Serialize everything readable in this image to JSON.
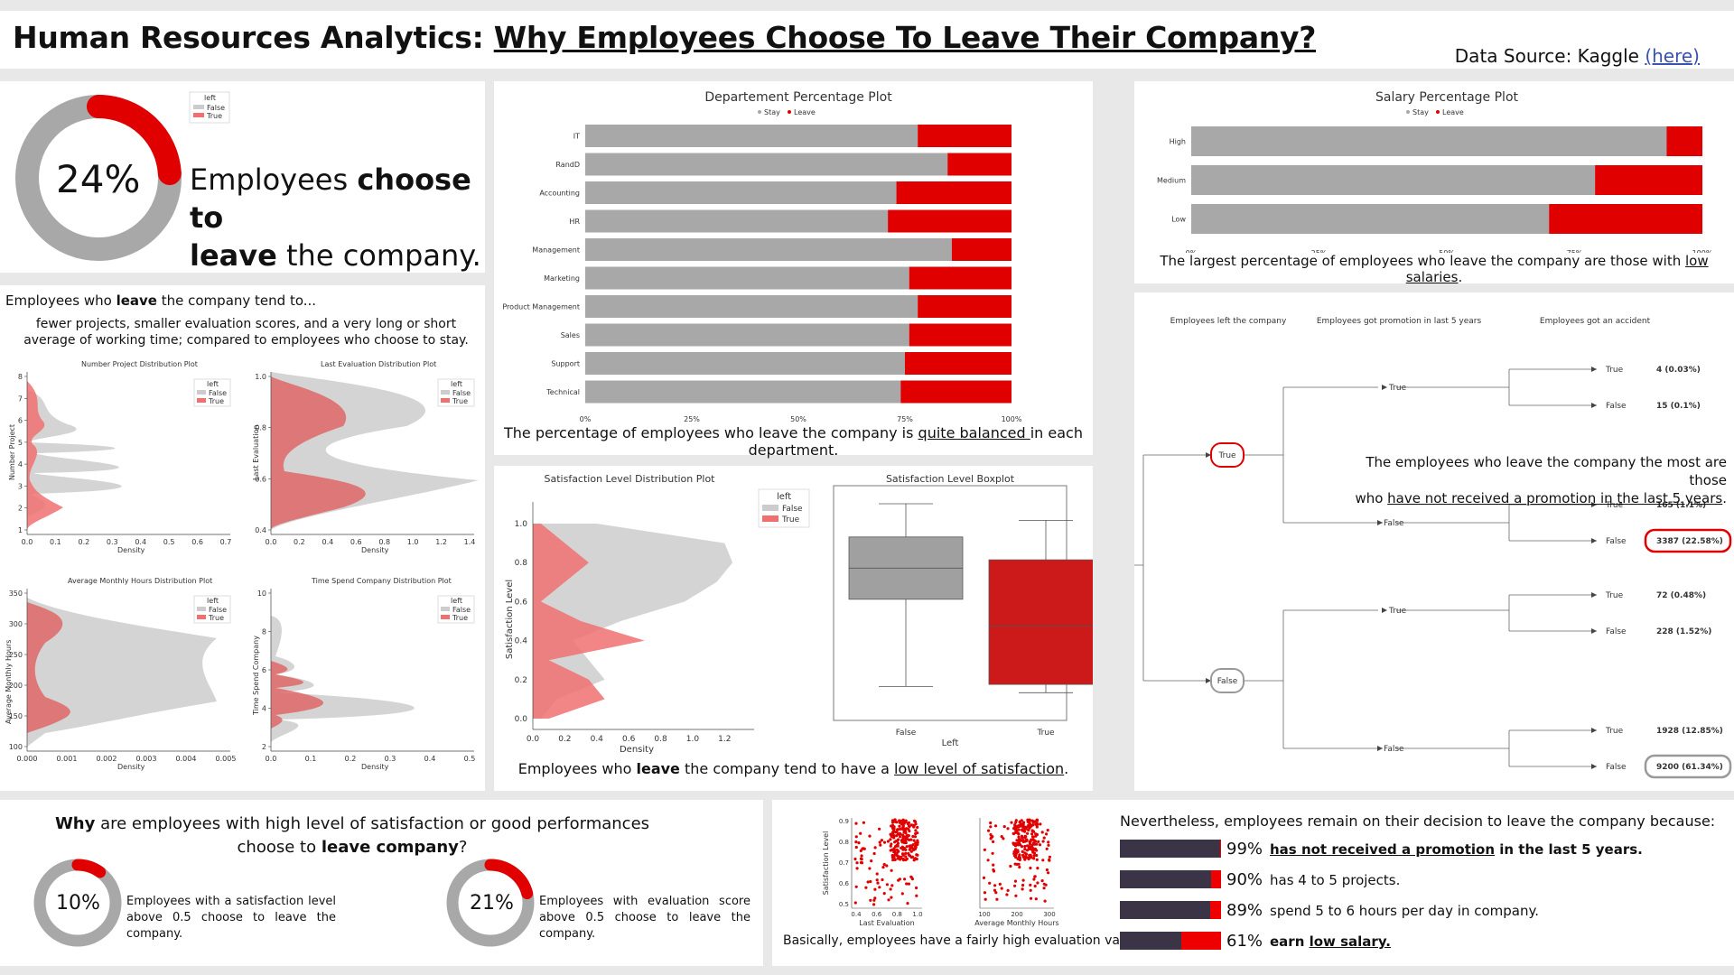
{
  "header": {
    "title_prefix": "Human Resources Analytics:",
    "title_main": "Why Employees Choose To Leave Their Company?",
    "source_label": "Data Source: Kaggle",
    "source_link": "(here)"
  },
  "kpi": {
    "percent_label": "24%",
    "percent_value": 0.24,
    "text_line1_a": "Employees ",
    "text_line1_b": "choose to",
    "text_line2_a": "leave",
    "text_line2_b": " the company.",
    "legend_title": "left",
    "legend_false": "False",
    "legend_true": "True"
  },
  "tend": {
    "heading_a": "Employees who ",
    "heading_b": "leave",
    "heading_c": " the company tend to...",
    "body": "fewer projects, smaller evaluation scores, and a very long or short average of working time; compared to employees who choose to stay."
  },
  "colors": {
    "gray": "#a8a8a8",
    "red": "#e00000",
    "red_light": "#f07070",
    "dark": "#3a3446"
  },
  "chart_data": [
    {
      "type": "bar",
      "orientation": "horizontal-stacked-percent",
      "title": "Departement Percentage Plot",
      "legend": [
        "Stay",
        "Leave"
      ],
      "categories": [
        "IT",
        "RandD",
        "Accounting",
        "HR",
        "Management",
        "Marketing",
        "Product Management",
        "Sales",
        "Support",
        "Technical"
      ],
      "series": [
        {
          "name": "Stay",
          "values": [
            78,
            85,
            73,
            71,
            86,
            76,
            78,
            76,
            75,
            74
          ]
        },
        {
          "name": "Leave",
          "values": [
            22,
            15,
            27,
            29,
            14,
            24,
            22,
            24,
            25,
            26
          ]
        }
      ],
      "xticks": [
        "0%",
        "25%",
        "50%",
        "75%",
        "100%"
      ]
    },
    {
      "type": "bar",
      "orientation": "horizontal-stacked-percent",
      "title": "Salary Percentage Plot",
      "legend": [
        "Stay",
        "Leave"
      ],
      "categories": [
        "High",
        "Medium",
        "Low"
      ],
      "series": [
        {
          "name": "Stay",
          "values": [
            93,
            79,
            70
          ]
        },
        {
          "name": "Leave",
          "values": [
            7,
            21,
            30
          ]
        }
      ],
      "xticks": [
        "0%",
        "25%",
        "50%",
        "75%",
        "100%"
      ]
    },
    {
      "type": "area",
      "title": "Satisfaction Level Distribution Plot",
      "xlabel": "Density",
      "ylabel": "Satisfaction Level",
      "xticks": [
        "0.0",
        "0.2",
        "0.4",
        "0.6",
        "0.8",
        "1.0",
        "1.2"
      ],
      "yticks": [
        "0.0",
        "0.2",
        "0.4",
        "0.6",
        "0.8",
        "1.0"
      ],
      "legend_title": "left",
      "series": [
        {
          "name": "False",
          "y": [
            0.0,
            0.1,
            0.2,
            0.3,
            0.4,
            0.5,
            0.6,
            0.7,
            0.8,
            0.9,
            1.0
          ],
          "density": [
            0.05,
            0.15,
            0.45,
            0.35,
            0.25,
            0.55,
            0.95,
            1.15,
            1.25,
            1.2,
            0.4
          ]
        },
        {
          "name": "True",
          "y": [
            0.0,
            0.1,
            0.2,
            0.3,
            0.4,
            0.5,
            0.6,
            0.7,
            0.8,
            0.9,
            1.0
          ],
          "density": [
            0.1,
            0.45,
            0.35,
            0.1,
            0.7,
            0.3,
            0.05,
            0.2,
            0.35,
            0.2,
            0.05
          ]
        }
      ]
    },
    {
      "type": "box",
      "title": "Satisfaction Level Boxplot",
      "xlabel": "Left",
      "categories": [
        "False",
        "True"
      ],
      "boxes": [
        {
          "min": 0.12,
          "q1": 0.54,
          "median": 0.69,
          "q3": 0.84,
          "max": 1.0
        },
        {
          "min": 0.09,
          "q1": 0.13,
          "median": 0.41,
          "q3": 0.73,
          "max": 0.92
        }
      ]
    },
    {
      "type": "scatter",
      "xlabel": "Last Evaluation",
      "ylabel": "Satisfaction Level",
      "xticks": [
        "0.4",
        "0.6",
        "0.8",
        "1.0"
      ],
      "yticks": [
        "0.5",
        "0.6",
        "0.7",
        "0.8",
        "0.9"
      ]
    },
    {
      "type": "scatter",
      "xlabel": "Average Monthly Hours",
      "xticks": [
        "100",
        "200",
        "300"
      ]
    }
  ],
  "small_plots": {
    "p1_title": "Number Project Distribution Plot",
    "p1_ylabel": "Number Project",
    "p1_xlabel": "Density",
    "p1_xticks": [
      "0.0",
      "0.1",
      "0.2",
      "0.3",
      "0.4",
      "0.5",
      "0.6",
      "0.7"
    ],
    "p1_yticks": [
      "1",
      "2",
      "3",
      "4",
      "5",
      "6",
      "7",
      "8"
    ],
    "p2_title": "Last Evaluation Distribution Plot",
    "p2_ylabel": "Last Evaluation",
    "p2_xlabel": "Density",
    "p2_xticks": [
      "0.0",
      "0.2",
      "0.4",
      "0.6",
      "0.8",
      "1.0",
      "1.2",
      "1.4"
    ],
    "p2_yticks": [
      "0.4",
      "0.6",
      "0.8",
      "1.0"
    ],
    "p3_title": "Average Monthly Hours Distribution Plot",
    "p3_ylabel": "Average Monthly Hours",
    "p3_xlabel": "Density",
    "p3_xticks": [
      "0.000",
      "0.001",
      "0.002",
      "0.003",
      "0.004",
      "0.005"
    ],
    "p3_yticks": [
      "100",
      "150",
      "200",
      "250",
      "300",
      "350"
    ],
    "p4_title": "Time Spend Company Distribution Plot",
    "p4_ylabel": "Time Spend Company",
    "p4_xlabel": "Density",
    "p4_xticks": [
      "0.0",
      "0.1",
      "0.2",
      "0.3",
      "0.4",
      "0.5"
    ],
    "p4_yticks": [
      "2",
      "4",
      "6",
      "8",
      "10"
    ],
    "legend_title": "left",
    "legend_false": "False",
    "legend_true": "True"
  },
  "captions": {
    "dept_a": "The percentage of employees who leave the company is ",
    "dept_b": "quite balanced ",
    "dept_c": "in each department.",
    "salary_a": "The largest percentage of employees who leave the company are those with ",
    "salary_b": "low salaries",
    "salary_c": ".",
    "sat_a": "Employees who ",
    "sat_b": "leave",
    "sat_c": " the company tend to have a ",
    "sat_d": "low level of satisfaction",
    "sat_e": ".",
    "scatter": "Basically, employees have a fairly high evaluation value."
  },
  "tree": {
    "col1": "Employees left the company",
    "col2": "Employees got promotion in last 5 years",
    "col3": "Employees got an accident",
    "root_true": "True",
    "root_false": "False",
    "note_a": "The employees who leave the company the most are those",
    "note_b": "who ",
    "note_c": "have not received a promotion in the last 5 years",
    "note_d": ".",
    "labels": [
      "True",
      "True",
      "False",
      "False",
      "True",
      "False",
      "True",
      "True",
      "False",
      "False",
      "True",
      "False"
    ],
    "values": [
      "4 (0.03%)",
      "15 (0.1%)",
      "165 (1.1%)",
      "3387 (22.58%)",
      "72 (0.48%)",
      "228 (1.52%)",
      "1928 (12.85%)",
      "9200 (61.34%)"
    ]
  },
  "why": {
    "q_a": "Why",
    "q_b": " are employees with high level of satisfaction or good performances choose to ",
    "q_c": "leave company",
    "q_d": "?",
    "d1_label": "10%",
    "d1_value": 0.1,
    "d1_text": "Employees with a satisfaction level above 0.5 choose to leave the company.",
    "d2_label": "21%",
    "d2_value": 0.21,
    "d2_text": "Employees with evaluation score above 0.5 choose to leave the company."
  },
  "reasons": {
    "heading": "Nevertheless, employees remain on their decision to leave the company because:",
    "items": [
      {
        "pct": "99%",
        "value": 0.99,
        "a": "has not received a promotion",
        "b": " in the last 5 years."
      },
      {
        "pct": "90%",
        "value": 0.9,
        "a": "",
        "b": "has 4 to 5 projects."
      },
      {
        "pct": "89%",
        "value": 0.89,
        "a": "",
        "b": "spend 5 to 6 hours per day in company."
      },
      {
        "pct": "61%",
        "value": 0.61,
        "a": "earn ",
        "b": "low salary."
      }
    ]
  }
}
